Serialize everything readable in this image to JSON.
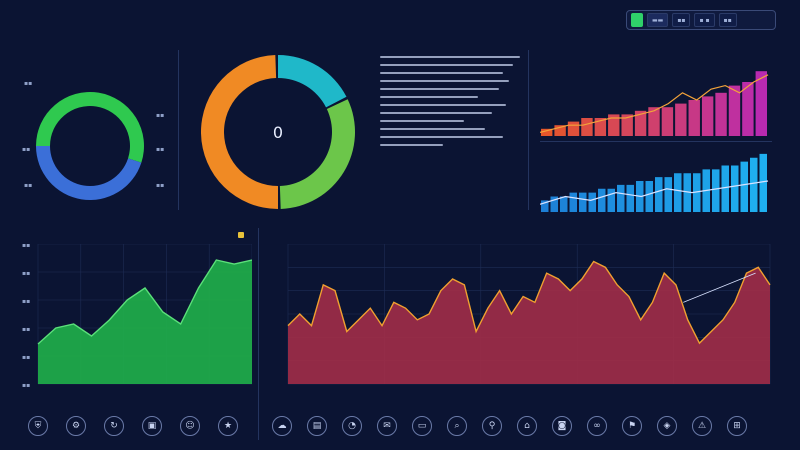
{
  "toolbar": {
    "buttons": [
      {
        "label": "",
        "style": "green"
      },
      {
        "label": "▬▬",
        "style": "active"
      },
      {
        "label": "▪▪",
        "style": ""
      },
      {
        "label": "▪ ▪",
        "style": ""
      },
      {
        "label": "▪▪",
        "style": ""
      }
    ]
  },
  "colors": {
    "background": "#0b1433",
    "donut_green": "#2fc94f",
    "donut_blue": "#3b6fd8",
    "ring_orange": "#f08a24",
    "ring_teal": "#1fb8c9",
    "ring_green": "#6cc64a",
    "bars_warm_start": "#e04a2a",
    "bars_warm_end": "#c22f8f",
    "bars_blue": "#1d8fe0",
    "green_area": "#1fae4a",
    "red_area": "#a82d47",
    "orange_line": "#f0a030"
  },
  "icons": [
    "shield-icon",
    "gear-icon",
    "refresh-icon",
    "lock-icon",
    "user-icon",
    "star-icon",
    "cloud-icon",
    "chart-icon",
    "bell-icon",
    "mail-icon",
    "folder-icon",
    "search-icon",
    "pin-icon",
    "home-icon",
    "camera-icon",
    "link-icon",
    "flag-icon",
    "tag-icon",
    "alert-icon",
    "cart-icon",
    "info-icon"
  ],
  "chart_data": [
    {
      "type": "pie",
      "name": "donut-small",
      "title": "",
      "center_label": "",
      "slices": [
        {
          "value": 55,
          "color": "#2fc94f"
        },
        {
          "value": 45,
          "color": "#3b6fd8"
        }
      ]
    },
    {
      "type": "pie",
      "name": "donut-large",
      "title": "",
      "center_label": "0",
      "slices": [
        {
          "value": 18,
          "color": "#1fb8c9"
        },
        {
          "value": 32,
          "color": "#6cc64a"
        },
        {
          "value": 50,
          "color": "#f08a24"
        }
      ]
    },
    {
      "type": "bar",
      "name": "bar-warm",
      "title": "",
      "values": [
        2,
        3,
        4,
        5,
        5,
        6,
        6,
        7,
        8,
        8,
        9,
        10,
        11,
        12,
        14,
        15,
        18
      ],
      "overlay_line": [
        1,
        2,
        3,
        3,
        4,
        5,
        5,
        6,
        7,
        9,
        12,
        10,
        13,
        14,
        12,
        15,
        17
      ],
      "ylim": [
        0,
        20
      ]
    },
    {
      "type": "bar",
      "name": "bar-blue",
      "title": "",
      "values": [
        3,
        4,
        4,
        5,
        5,
        5,
        6,
        6,
        7,
        7,
        8,
        8,
        9,
        9,
        10,
        10,
        10,
        11,
        11,
        12,
        12,
        13,
        14,
        15
      ],
      "overlay_line": [
        2,
        4,
        3,
        5,
        4,
        6,
        5,
        6,
        7,
        8
      ],
      "ylim": [
        0,
        16
      ]
    },
    {
      "type": "area",
      "name": "area-green",
      "title": "",
      "values": [
        10,
        14,
        15,
        12,
        16,
        21,
        24,
        18,
        15,
        24,
        31,
        30,
        31
      ],
      "ylim": [
        0,
        35
      ]
    },
    {
      "type": "area",
      "name": "area-red",
      "title": "",
      "values": [
        10,
        12,
        10,
        17,
        16,
        9,
        11,
        13,
        10,
        14,
        13,
        11,
        12,
        16,
        18,
        17,
        9,
        13,
        16,
        12,
        15,
        14,
        19,
        18,
        16,
        18,
        21,
        20,
        17,
        15,
        11,
        14,
        19,
        17,
        11,
        7,
        9,
        11,
        14,
        19,
        20,
        17
      ],
      "trend_line": [
        1,
        19
      ],
      "ylim": [
        0,
        24
      ]
    }
  ]
}
